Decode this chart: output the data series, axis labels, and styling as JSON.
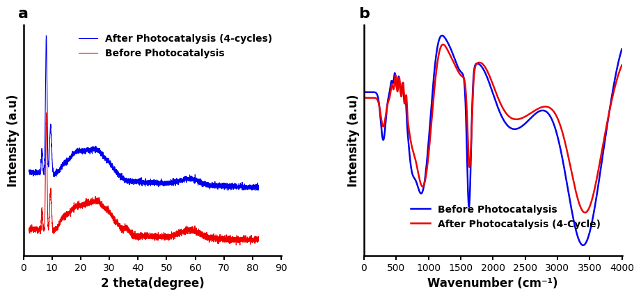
{
  "panel_a": {
    "label": "a",
    "xlabel": "2 theta(degree)",
    "ylabel": "Intensity (a.u)",
    "xlim": [
      0,
      90
    ],
    "xticks": [
      0,
      10,
      20,
      30,
      40,
      50,
      60,
      70,
      80,
      90
    ],
    "blue_label": "After Photocatalysis (4-cycles)",
    "red_label": "Before Photocatalysis",
    "blue_color": "#0000EE",
    "red_color": "#EE0000",
    "linewidth": 0.8
  },
  "panel_b": {
    "label": "b",
    "xlabel": "Wavenumber (cm⁻¹)",
    "ylabel": "Intensity (a.u)",
    "xlim": [
      0,
      4000
    ],
    "xticks": [
      0,
      500,
      1000,
      1500,
      2000,
      2500,
      3000,
      3500,
      4000
    ],
    "blue_label": "Before Photocatalysis",
    "red_label": "After Photocatalysis (4-Cycle)",
    "blue_color": "#0000EE",
    "red_color": "#EE0000",
    "linewidth": 1.8
  },
  "fig_bg": "#ffffff",
  "label_fontsize": 12,
  "tick_fontsize": 10,
  "legend_fontsize": 10,
  "panel_label_fontsize": 16
}
